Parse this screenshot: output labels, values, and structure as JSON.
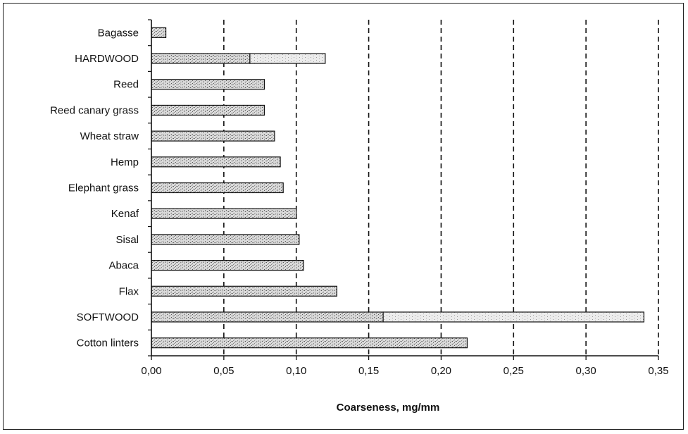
{
  "chart_data": {
    "type": "bar",
    "orientation": "horizontal",
    "categories": [
      "Bagasse",
      "HARDWOOD",
      "Reed",
      "Reed canary grass",
      "Wheat straw",
      "Hemp",
      "Elephant grass",
      "Kenaf",
      "Sisal",
      "Abaca",
      "Flax",
      "SOFTWOOD",
      "Cotton linters"
    ],
    "series": [
      {
        "low": [
          0.0,
          0.0,
          0.0,
          0.0,
          0.0,
          0.0,
          0.0,
          0.0,
          0.0,
          0.0,
          0.0,
          0.0,
          0.0
        ],
        "values": [
          0.01,
          0.068,
          0.078,
          0.078,
          0.085,
          0.089,
          0.091,
          0.1,
          0.102,
          0.105,
          0.128,
          0.16,
          0.218
        ],
        "note": "dark stippled segment"
      },
      {
        "low": [
          null,
          0.068,
          null,
          null,
          null,
          null,
          null,
          null,
          null,
          null,
          null,
          0.16,
          null
        ],
        "values": [
          null,
          0.12,
          null,
          null,
          null,
          null,
          null,
          null,
          null,
          null,
          null,
          0.34,
          null
        ],
        "note": "light stippled range extension"
      }
    ],
    "xlabel": "Coarseness, mg/mm",
    "ylabel": "",
    "xlim": [
      0,
      0.35
    ],
    "xticks": [
      "0,00",
      "0,05",
      "0,10",
      "0,15",
      "0,20",
      "0,25",
      "0,30",
      "0,35"
    ],
    "grid": "vertical dashed",
    "legend": "none",
    "colors": {
      "bar_fill": "#d6d6d6",
      "bar_stipple": "#6a6a6a",
      "bar_outline": "#111111",
      "grid": "#111111"
    }
  }
}
